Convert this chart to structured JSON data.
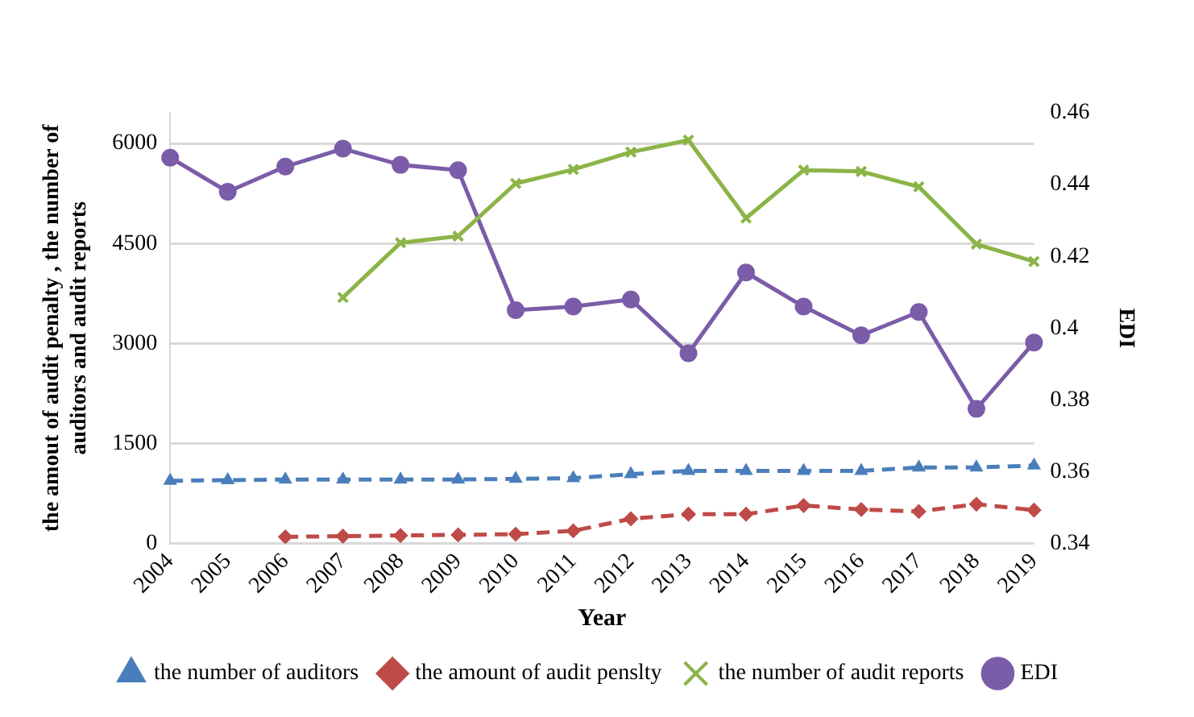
{
  "chart_data": {
    "type": "line",
    "xlabel": "Year",
    "ylabel": "the amout of audit penalty , the number of auditors and audit reports",
    "y2label": "EDI",
    "categories": [
      "2004",
      "2005",
      "2006",
      "2007",
      "2008",
      "2009",
      "2010",
      "2011",
      "2012",
      "2013",
      "2014",
      "2015",
      "2016",
      "2017",
      "2018",
      "2019"
    ],
    "series": [
      {
        "name": "the number of auditors",
        "color": "#4a7ebb",
        "marker": "triangle",
        "line_style": "dashed",
        "values": [
          940,
          950,
          960,
          960,
          960,
          960,
          970,
          980,
          1040,
          1090,
          1090,
          1090,
          1090,
          1140,
          1140,
          1170
        ]
      },
      {
        "name": "the amount of audit penslty",
        "color": "#be4b48",
        "marker": "diamond",
        "line_style": "dashed",
        "values": [
          null,
          null,
          100,
          110,
          120,
          130,
          140,
          190,
          370,
          440,
          440,
          570,
          510,
          480,
          590,
          500
        ]
      },
      {
        "name": "the number of audit reports",
        "color": "#8cb448",
        "marker": "cross",
        "line_style": "solid",
        "values": [
          null,
          null,
          null,
          3690,
          4510,
          4610,
          5400,
          5610,
          5870,
          6050,
          4880,
          5600,
          5580,
          5350,
          4490,
          4230
        ]
      },
      {
        "name": "EDI",
        "color": "#7b5ca8",
        "marker": "circle",
        "line_style": "solid",
        "axis": "y2",
        "values": [
          0.4475,
          0.438,
          0.445,
          0.45,
          0.4455,
          0.444,
          0.405,
          0.406,
          0.408,
          0.393,
          0.4155,
          0.406,
          0.398,
          0.4045,
          0.3775,
          0.396
        ]
      }
    ],
    "ylim": [
      0,
      6460
    ],
    "yticks": [
      0,
      1500,
      3000,
      4500,
      6000
    ],
    "y2lim": [
      0.34,
      0.46
    ],
    "y2ticks": [
      0.34,
      0.36,
      0.38,
      0.4,
      0.42,
      0.44,
      0.46
    ],
    "grid": "y",
    "legend": "bottom"
  }
}
